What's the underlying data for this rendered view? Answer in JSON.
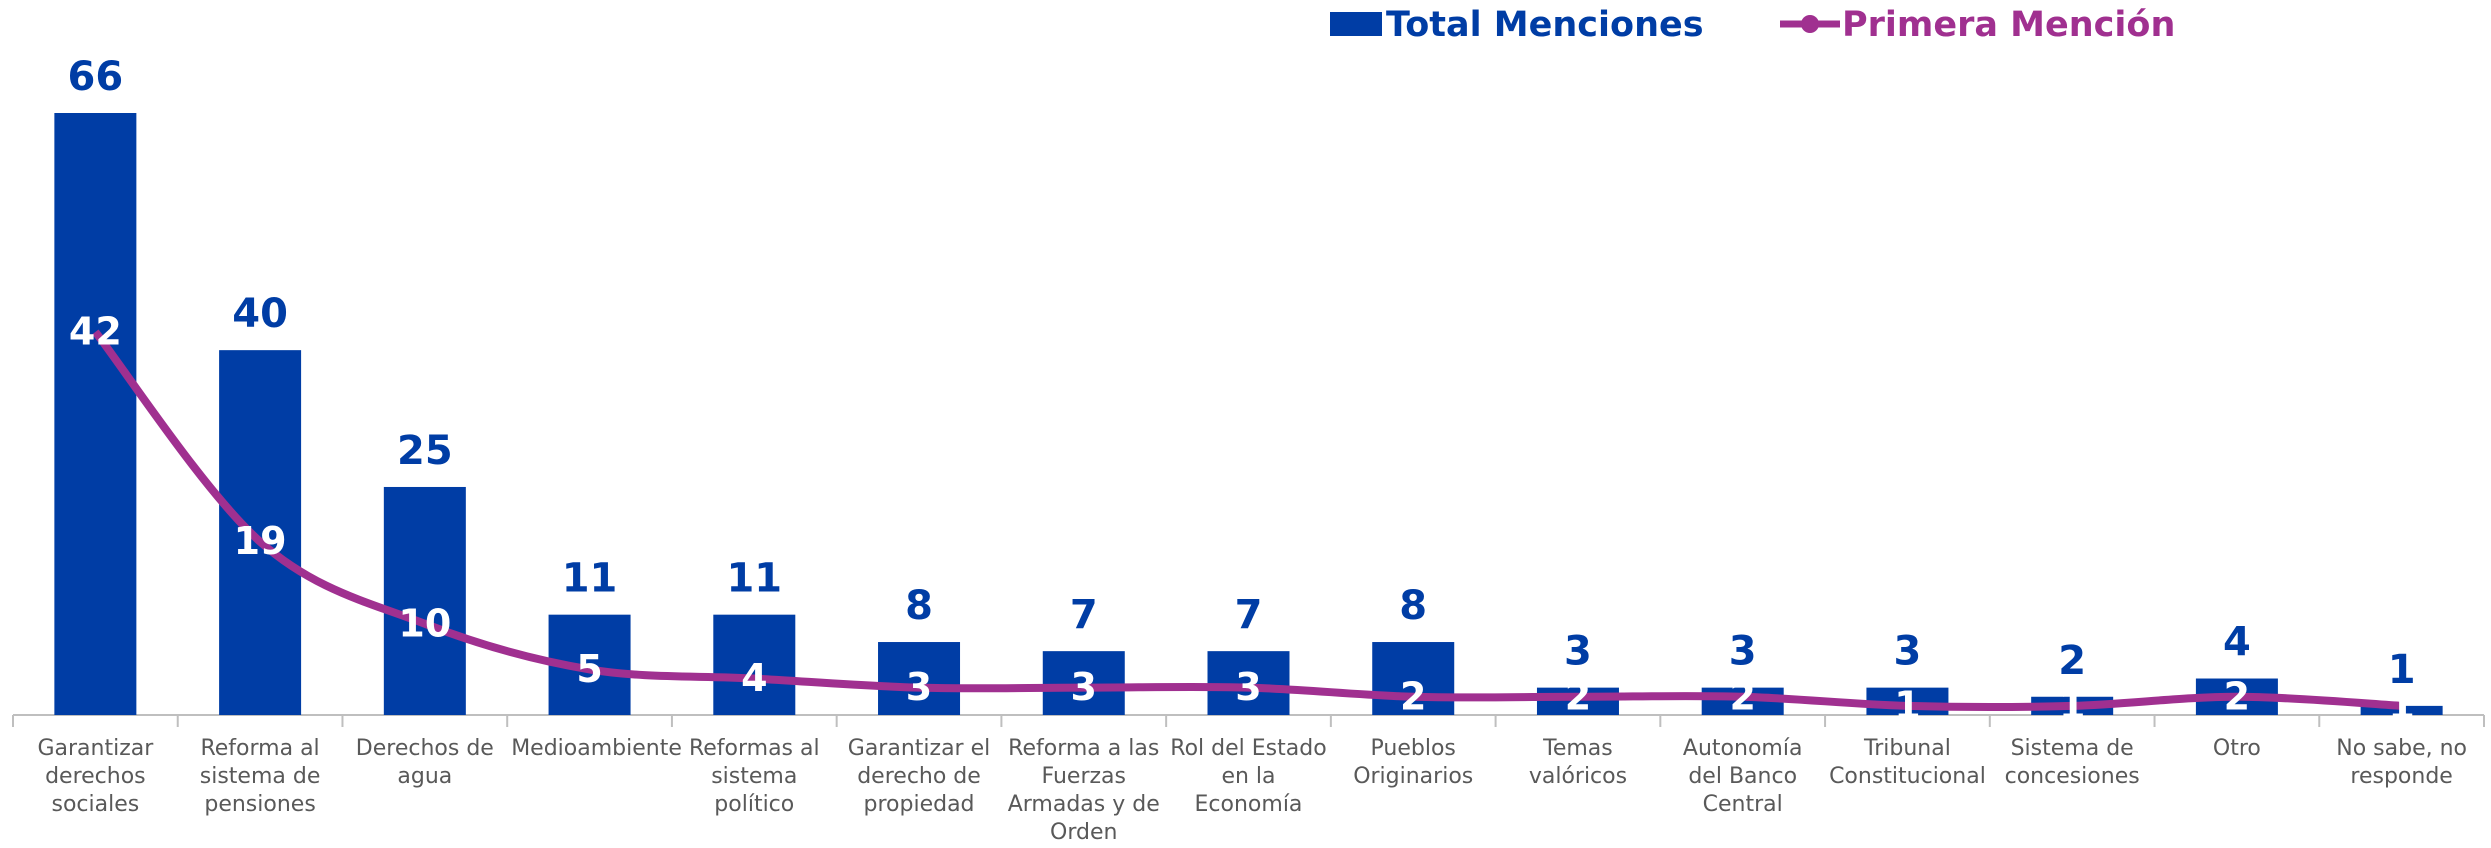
{
  "chart_data": {
    "type": "bar_line",
    "categories": [
      "Garantizar derechos sociales",
      "Reforma al sistema de pensiones",
      "Derechos de agua",
      "Medioambiente",
      "Reformas al sistema político",
      "Garantizar el derecho de propiedad",
      "Reforma a las Fuerzas Armadas y de Orden",
      "Rol del Estado en la Economía",
      "Pueblos Originarios",
      "Temas valóricos",
      "Autonomía del Banco Central",
      "Tribunal Constitucional",
      "Sistema de concesiones",
      "Otro",
      "No sabe, no responde"
    ],
    "series": [
      {
        "name": "Total Menciones",
        "type": "bar",
        "color": "#003da5",
        "values": [
          66,
          40,
          25,
          11,
          11,
          8,
          7,
          7,
          8,
          3,
          3,
          3,
          2,
          4,
          1
        ]
      },
      {
        "name": "Primera Mención",
        "type": "line",
        "color": "#a03090",
        "values": [
          42,
          19,
          10,
          5,
          4,
          3,
          3,
          3,
          2,
          2,
          2,
          1,
          1,
          2,
          1
        ]
      }
    ],
    "legend": "top"
  }
}
